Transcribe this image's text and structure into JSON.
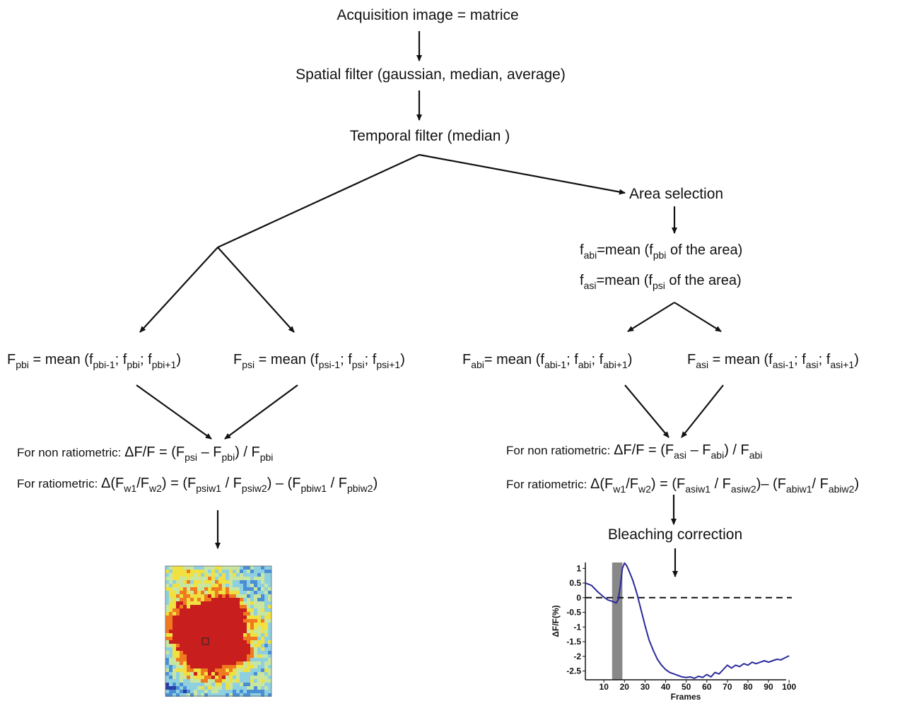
{
  "steps": {
    "acquisition": "Acquisition image = matrice",
    "spatial": "Spatial filter (gaussian, median, average)",
    "temporal": "Temporal filter (median )",
    "area": "Area selection",
    "bleaching": "Bleaching correction"
  },
  "area_means": {
    "fabi": {
      "sym": "f",
      "sub": "abi",
      "eq": "=mean (f",
      "arg": "pbi",
      "tail": " of the area)"
    },
    "fasi": {
      "sym": "f",
      "sub": "asi",
      "eq": "=mean (f",
      "arg": "psi",
      "tail": " of the area)"
    }
  },
  "temporal_means": {
    "fpbi": {
      "sym": "F",
      "sub": "pbi",
      "eq": " = mean (f",
      "a1": "pbi-1",
      "s1": "; f",
      "a2": "pbi",
      "s2": "; f",
      "a3": "pbi+1",
      "end": ")"
    },
    "fpsi": {
      "sym": "F",
      "sub": "psi",
      "eq": " = mean (f",
      "a1": "psi-1",
      "s1": "; f",
      "a2": "psi",
      "s2": "; f",
      "a3": "psi+1",
      "end": ")"
    },
    "fabi": {
      "sym": "F",
      "sub": "abi",
      "eq": "= mean (f",
      "a1": "abi-1",
      "s1": "; f",
      "a2": "abi",
      "s2": "; f",
      "a3": "abi+1",
      "end": ")"
    },
    "fasi": {
      "sym": "F",
      "sub": "asi",
      "eq": " = mean (f",
      "a1": "asi-1",
      "s1": "; f",
      "a2": "asi",
      "s2": "; f",
      "a3": "asi+1",
      "end": ")"
    }
  },
  "formulas_left": {
    "nonratio_label": "For non ratiometric: ",
    "nonratio": {
      "p1": "ΔF/F = (F",
      "s1": "psi",
      "p2": " – F",
      "s2": "pbi",
      "p3": ") / F",
      "s3": "pbi"
    },
    "ratio_label": "For ratiometric: ",
    "ratio": {
      "p1": "Δ(F",
      "s1": "w1",
      "p2": "/F",
      "s2": "w2",
      "p3": ") = (F",
      "s3": "psiw1",
      "p4": " / F",
      "s4": "psiw2",
      "p5": ") – (F",
      "s5": "pbiw1",
      "p6": " / F",
      "s6": "pbiw2",
      "p7": ")"
    }
  },
  "formulas_right": {
    "nonratio_label": "For non ratiometric: ",
    "nonratio": {
      "p1": "ΔF/F = (F",
      "s1": "asi",
      "p2": " – F",
      "s2": "abi",
      "p3": ") / F",
      "s3": "abi"
    },
    "ratio_label": "For ratiometric: ",
    "ratio": {
      "p1": "Δ(F",
      "s1": "w1",
      "p2": "/F",
      "s2": "w2",
      "p3": ") = (F",
      "s3": "asiw1",
      "p4": " / F",
      "s4": "asiw2",
      "p5": ")– (F",
      "s5": "abiw1",
      "p6": "/ F",
      "s6": "abiw2",
      "p7": ")"
    }
  },
  "heatmap": {
    "colors": [
      "#2a3ea8",
      "#4a8fd6",
      "#8fd0e0",
      "#c8e6a0",
      "#f0e040",
      "#f07a20",
      "#c81e1e"
    ]
  },
  "chart_data": {
    "type": "line",
    "xlabel": "Frames",
    "ylabel": "ΔF/F(%)",
    "xticks": [
      10,
      20,
      30,
      40,
      50,
      60,
      70,
      80,
      90,
      100
    ],
    "yticks": [
      1,
      0.5,
      0,
      -0.5,
      -1,
      -1.5,
      -2,
      -2.5
    ],
    "ylim": [
      -2.8,
      1.2
    ],
    "xlim": [
      1,
      102
    ],
    "stimulus_band": [
      14,
      19
    ],
    "baseline": 0,
    "series": [
      {
        "color": "#2a2a9a",
        "x": [
          1,
          4,
          7,
          10,
          12,
          14,
          16,
          17,
          18,
          19,
          20,
          21,
          22,
          24,
          26,
          28,
          30,
          32,
          34,
          36,
          38,
          40,
          42,
          44,
          46,
          48,
          50,
          52,
          54,
          56,
          58,
          60,
          62,
          64,
          66,
          68,
          70,
          72,
          74,
          76,
          78,
          80,
          82,
          84,
          86,
          88,
          90,
          92,
          94,
          96,
          98,
          100
        ],
        "y": [
          0.5,
          0.42,
          0.2,
          0.02,
          -0.08,
          -0.12,
          -0.18,
          -0.05,
          0.4,
          1.0,
          1.18,
          1.1,
          0.95,
          0.6,
          0.15,
          -0.4,
          -0.95,
          -1.45,
          -1.8,
          -2.1,
          -2.3,
          -2.45,
          -2.55,
          -2.6,
          -2.65,
          -2.7,
          -2.72,
          -2.7,
          -2.75,
          -2.68,
          -2.72,
          -2.62,
          -2.7,
          -2.55,
          -2.6,
          -2.45,
          -2.3,
          -2.4,
          -2.3,
          -2.35,
          -2.25,
          -2.3,
          -2.2,
          -2.25,
          -2.2,
          -2.15,
          -2.2,
          -2.15,
          -2.1,
          -2.12,
          -2.05,
          -1.98
        ]
      }
    ]
  }
}
